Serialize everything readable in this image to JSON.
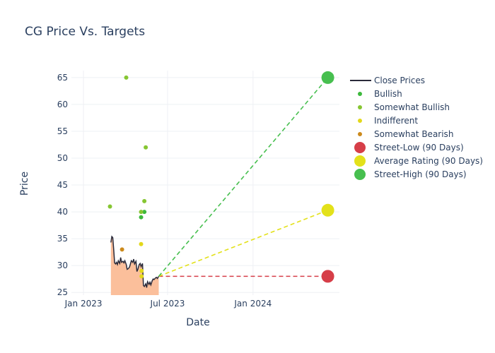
{
  "chart_data": {
    "type": "scatter",
    "title": "CG Price Vs. Targets",
    "xlabel": "Date",
    "ylabel": "Price",
    "x_ticks": [
      "2023-01-01",
      "2023-07-01",
      "2024-01-01"
    ],
    "x_tick_labels": [
      "Jan 2023",
      "Jul 2023",
      "Jan 2024"
    ],
    "xlim": [
      "2022-12-06",
      "2024-07-05"
    ],
    "y_ticks": [
      25,
      30,
      35,
      40,
      45,
      50,
      55,
      60,
      65
    ],
    "ylim": [
      24.5,
      66.3
    ],
    "grid": true,
    "legend_position": "right",
    "colors": {
      "close": "#2a2a3a",
      "fill": "#fbbf9b",
      "bullish": "#3cb93c",
      "somewhat_bullish": "#86c632",
      "indifferent": "#e3d81a",
      "somewhat_bearish": "#cc8a1c",
      "street_low": "#d63e48",
      "average": "#e3e11a",
      "street_high": "#47bf4f",
      "text": "#2a3f5f",
      "grid": "#eef0f4"
    },
    "legend": [
      {
        "key": "close",
        "label": "Close Prices",
        "kind": "line"
      },
      {
        "key": "bullish",
        "label": "Bullish",
        "kind": "dot"
      },
      {
        "key": "somewhat_bullish",
        "label": "Somewhat Bullish",
        "kind": "dot"
      },
      {
        "key": "indifferent",
        "label": "Indifferent",
        "kind": "dot"
      },
      {
        "key": "somewhat_bearish",
        "label": "Somewhat Bearish",
        "kind": "dot"
      },
      {
        "key": "street_low",
        "label": "Street-Low (90 Days)",
        "kind": "big"
      },
      {
        "key": "average",
        "label": "Average Rating (90 Days)",
        "kind": "big"
      },
      {
        "key": "street_high",
        "label": "Street-High (90 Days)",
        "kind": "big"
      }
    ],
    "close_prices": {
      "x": [
        "2023-03-01",
        "2023-03-03",
        "2023-03-05",
        "2023-03-07",
        "2023-03-09",
        "2023-03-11",
        "2023-03-13",
        "2023-03-15",
        "2023-03-17",
        "2023-03-20",
        "2023-03-22",
        "2023-03-24",
        "2023-03-27",
        "2023-03-29",
        "2023-03-31",
        "2023-04-03",
        "2023-04-05",
        "2023-04-07",
        "2023-04-10",
        "2023-04-12",
        "2023-04-14",
        "2023-04-17",
        "2023-04-19",
        "2023-04-21",
        "2023-04-24",
        "2023-04-26",
        "2023-04-28",
        "2023-05-01",
        "2023-05-03",
        "2023-05-05",
        "2023-05-08",
        "2023-05-10",
        "2023-05-12",
        "2023-05-15",
        "2023-05-17",
        "2023-05-19",
        "2023-05-22",
        "2023-05-24",
        "2023-05-26",
        "2023-05-29",
        "2023-05-31",
        "2023-06-02",
        "2023-06-05",
        "2023-06-07",
        "2023-06-09",
        "2023-06-12"
      ],
      "values": [
        34.3,
        35.4,
        35.2,
        33.0,
        30.5,
        30.3,
        30.6,
        30.2,
        30.9,
        30.4,
        31.5,
        30.6,
        30.8,
        30.5,
        30.9,
        30.2,
        29.3,
        29.4,
        29.7,
        30.3,
        30.9,
        30.6,
        31.2,
        30.3,
        30.8,
        28.9,
        29.3,
        30.2,
        30.4,
        29.8,
        30.4,
        26.3,
        26.1,
        26.6,
        25.9,
        27.0,
        26.5,
        26.9,
        26.4,
        27.2,
        27.5,
        27.4,
        27.7,
        27.8,
        27.6,
        28.0
      ]
    },
    "ratings": {
      "bullish": [
        {
          "x": "2023-05-05",
          "y": 39
        },
        {
          "x": "2023-05-12",
          "y": 40
        }
      ],
      "somewhat_bullish": [
        {
          "x": "2023-02-27",
          "y": 41
        },
        {
          "x": "2023-04-03",
          "y": 65
        },
        {
          "x": "2023-05-05",
          "y": 40
        },
        {
          "x": "2023-05-12",
          "y": 42
        },
        {
          "x": "2023-05-15",
          "y": 52
        }
      ],
      "indifferent": [
        {
          "x": "2023-05-05",
          "y": 34
        },
        {
          "x": "2023-05-06",
          "y": 29
        },
        {
          "x": "2023-05-06",
          "y": 28
        }
      ],
      "somewhat_bearish": [
        {
          "x": "2023-03-25",
          "y": 33
        }
      ]
    },
    "targets": {
      "start": {
        "x": "2023-06-12",
        "y": 28.0
      },
      "end_x": "2024-06-10",
      "street_low": 28,
      "average": 40.3,
      "street_high": 65
    }
  }
}
